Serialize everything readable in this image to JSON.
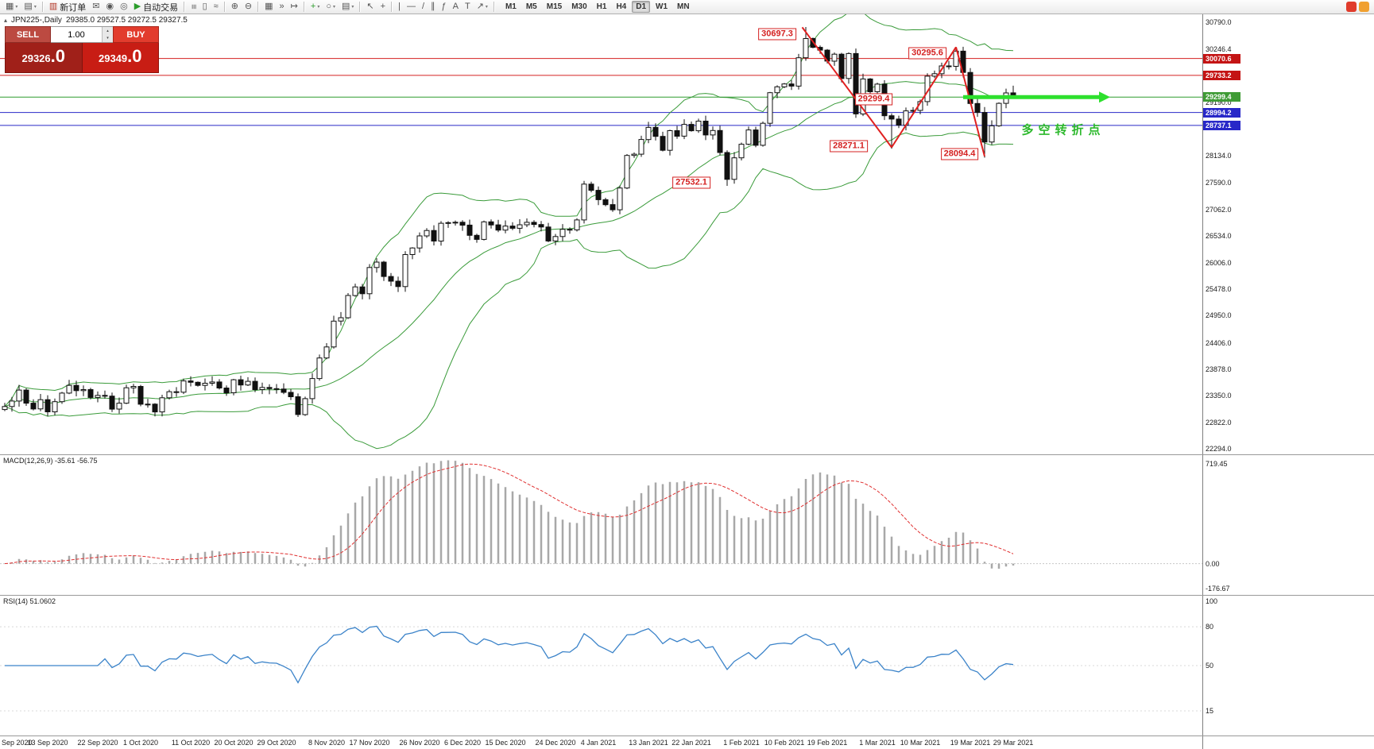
{
  "toolbar": {
    "items": [
      {
        "name": "new-chart-icon",
        "glyph": "▦",
        "dropdown": true
      },
      {
        "name": "chart-profiles-icon",
        "glyph": "▤",
        "dropdown": true
      },
      {
        "sep": true
      },
      {
        "name": "new-order-button",
        "glyph": "▥",
        "glyph_color": "#b03020",
        "label": "新订单"
      },
      {
        "name": "mailbox-icon",
        "glyph": "✉"
      },
      {
        "name": "alerts-icon",
        "glyph": "◉"
      },
      {
        "name": "community-icon",
        "glyph": "◎"
      },
      {
        "name": "autotrading-button",
        "glyph": "▶",
        "glyph_color": "#2a9c2a",
        "label": "自动交易"
      },
      {
        "sep": true
      },
      {
        "name": "bar-chart-icon",
        "glyph": "≡",
        "rotate": true
      },
      {
        "name": "candlestick-chart-icon",
        "glyph": "▯"
      },
      {
        "name": "line-chart-icon",
        "glyph": "≈"
      },
      {
        "sep": true
      },
      {
        "name": "zoom-in-icon",
        "glyph": "⊕"
      },
      {
        "name": "zoom-out-icon",
        "glyph": "⊖"
      },
      {
        "sep": true
      },
      {
        "name": "tile-windows-icon",
        "glyph": "▦"
      },
      {
        "name": "auto-scroll-icon",
        "glyph": "»"
      },
      {
        "name": "chart-shift-icon",
        "glyph": "↦"
      },
      {
        "sep": true
      },
      {
        "name": "indicators-icon",
        "glyph": "+",
        "glyph_color": "#2a9c2a",
        "dropdown": true
      },
      {
        "name": "periods-icon",
        "glyph": "○",
        "dropdown": true
      },
      {
        "name": "templates-icon",
        "glyph": "▤",
        "dropdown": true
      },
      {
        "sep": true
      },
      {
        "name": "cursor-icon",
        "glyph": "↖"
      },
      {
        "name": "crosshair-icon",
        "glyph": "+"
      },
      {
        "sep": true
      },
      {
        "name": "vertical-line-icon",
        "glyph": "|"
      },
      {
        "name": "horizontal-line-icon",
        "glyph": "—"
      },
      {
        "name": "trendline-icon",
        "glyph": "/"
      },
      {
        "name": "channel-icon",
        "glyph": "∥"
      },
      {
        "name": "fibonacci-icon",
        "glyph": "ƒ"
      },
      {
        "name": "text-icon",
        "glyph": "A"
      },
      {
        "name": "label-icon",
        "glyph": "T"
      },
      {
        "name": "arrows-icon",
        "glyph": "↗",
        "dropdown": true
      },
      {
        "sep": true
      }
    ],
    "timeframes": [
      "M1",
      "M5",
      "M15",
      "M30",
      "H1",
      "H4",
      "D1",
      "W1",
      "MN"
    ],
    "active_timeframe": "D1",
    "right_icons": [
      {
        "name": "mql5-community-icon",
        "color": "#e03c2c"
      },
      {
        "name": "news-icon",
        "color": "#f0a030"
      }
    ]
  },
  "symbol_bar": {
    "title": "JPN225-,Daily",
    "ohlc": "29385.0 29527.5 29272.5 29327.5"
  },
  "trade_panel": {
    "sell_label": "SELL",
    "buy_label": "BUY",
    "volume": "1.00",
    "sell_price_main": "29326",
    "sell_price_pips": ".0",
    "buy_price_main": "29349",
    "buy_price_pips": ".0"
  },
  "indicators": {
    "macd_label": "MACD(12,26,9) -35.61 -56.75",
    "rsi_label": "RSI(14) 51.0602"
  },
  "chart_data": {
    "type": "candlestick",
    "symbol": "JPN225-",
    "timeframe": "Daily",
    "closes": [
      23138,
      23247,
      23466,
      23205,
      23090,
      23274,
      23032,
      23235,
      23406,
      23559,
      23454,
      23475,
      23319,
      23360,
      23346,
      23087,
      23204,
      23511,
      23539,
      23185,
      23185,
      23030,
      23312,
      23433,
      23423,
      23647,
      23620,
      23559,
      23601,
      23627,
      23507,
      23411,
      23671,
      23567,
      23639,
      23474,
      23517,
      23494,
      23486,
      23419,
      23332,
      22977,
      23295,
      23695,
      24105,
      24325,
      24839,
      24906,
      25349,
      25521,
      25385,
      25907,
      26014,
      25728,
      25634,
      25527,
      26165,
      26296,
      26537,
      26644,
      26433,
      26787,
      26800,
      26809,
      26751,
      26547,
      26467,
      26817,
      26756,
      26652,
      26732,
      26687,
      26757,
      26806,
      26763,
      26714,
      26436,
      26524,
      26668,
      26657,
      26854,
      27568,
      27444,
      27258,
      27159,
      27056,
      27490,
      28139,
      28164,
      28456,
      28698,
      28519,
      28242,
      28633,
      28523,
      28757,
      28631,
      28822,
      28546,
      28635,
      28197,
      27663,
      28091,
      28362,
      28646,
      28341,
      28779,
      29388,
      29505,
      29562,
      29520,
      30084,
      30467,
      30292,
      30236,
      30017,
      30156,
      29671,
      30168,
      28966,
      29663,
      29408,
      29559,
      28930,
      28864,
      28743,
      29027,
      29036,
      29211,
      29717,
      29766,
      29921,
      29914,
      30216,
      29792,
      29174,
      28995,
      28406,
      28729,
      29176,
      29384,
      29327.5
    ],
    "key_bars": [
      {
        "i": 101,
        "low": 27532.1
      },
      {
        "i": 112,
        "high": 30697.3
      },
      {
        "i": 124,
        "low": 28271.1
      },
      {
        "i": 133,
        "high": 30295.6
      },
      {
        "i": 137,
        "low": 28094.4
      },
      {
        "i": 141,
        "open": 29385.0,
        "high": 29527.5,
        "low": 29272.5,
        "close": 29327.5
      }
    ],
    "bollinger": {
      "period": 20,
      "deviation": 2
    },
    "price_axis_labels": [
      "30790.0",
      "30246.4",
      "29190.0",
      "28134.0",
      "27590.0",
      "27062.0",
      "26534.0",
      "26006.0",
      "25478.0",
      "24950.0",
      "24406.0",
      "23878.0",
      "23350.0",
      "22822.0",
      "22294.0"
    ],
    "price_tags": [
      {
        "value": "30070.6",
        "color": "#c41414"
      },
      {
        "value": "29733.2",
        "color": "#c41414"
      },
      {
        "value": "29299.4",
        "color": "#3f9b35"
      },
      {
        "value": "28994.2",
        "color": "#2828c8"
      },
      {
        "value": "28737.1",
        "color": "#2828c8"
      }
    ],
    "levels": [
      {
        "price": 30070.6,
        "color": "#d42020"
      },
      {
        "price": 29733.2,
        "color": "#d42020"
      },
      {
        "price": 29299.4,
        "color": "#2e9b2e"
      },
      {
        "price": 28994.2,
        "color": "#2828c8"
      },
      {
        "price": 28737.1,
        "color": "#2828c8"
      }
    ],
    "annotations": [
      {
        "text": "30697.3",
        "bar": 108,
        "price": 30560,
        "style": "box"
      },
      {
        "text": "30295.6",
        "bar": 129,
        "price": 30180,
        "style": "box"
      },
      {
        "text": "29299.4",
        "bar": 121.5,
        "price": 29265,
        "style": "box"
      },
      {
        "text": "28271.1",
        "bar": 118,
        "price": 28330,
        "style": "box"
      },
      {
        "text": "28094.4",
        "bar": 133.5,
        "price": 28170,
        "style": "box"
      },
      {
        "text": "27532.1",
        "bar": 96,
        "price": 27600,
        "style": "box"
      },
      {
        "text": "多空转折点",
        "bar": 148,
        "price": 28650,
        "style": "note"
      }
    ],
    "trend_lines": [
      {
        "b1": 111.5,
        "p1": 30690,
        "b2": 124,
        "p2": 28300
      },
      {
        "b1": 124,
        "p1": 28300,
        "b2": 133,
        "p2": 30296
      },
      {
        "b1": 133,
        "p1": 30296,
        "b2": 137,
        "p2": 28120
      }
    ],
    "highlight_line": {
      "price": 29299.4,
      "from_bar": 134,
      "to_bar": 153,
      "color": "#2de02d"
    },
    "macd_axis_labels": [
      "719.45",
      "0.00",
      "-176.67"
    ],
    "rsi_axis_labels": [
      "100",
      "80",
      "50",
      "15"
    ],
    "rsi_levels": [
      80,
      50,
      15
    ],
    "time_axis": [
      {
        "label": "Sep 2020",
        "bar": 0
      },
      {
        "label": "13 Sep 2020",
        "bar": 6
      },
      {
        "label": "22 Sep 2020",
        "bar": 13
      },
      {
        "label": "1 Oct 2020",
        "bar": 19
      },
      {
        "label": "11 Oct 2020",
        "bar": 26
      },
      {
        "label": "20 Oct 2020",
        "bar": 32
      },
      {
        "label": "29 Oct 2020",
        "bar": 38
      },
      {
        "label": "8 Nov 2020",
        "bar": 45
      },
      {
        "label": "17 Nov 2020",
        "bar": 51
      },
      {
        "label": "26 Nov 2020",
        "bar": 58
      },
      {
        "label": "6 Dec 2020",
        "bar": 64
      },
      {
        "label": "15 Dec 2020",
        "bar": 70
      },
      {
        "label": "24 Dec 2020",
        "bar": 77
      },
      {
        "label": "4 Jan 2021",
        "bar": 83
      },
      {
        "label": "13 Jan 2021",
        "bar": 90
      },
      {
        "label": "22 Jan 2021",
        "bar": 96
      },
      {
        "label": "1 Feb 2021",
        "bar": 103
      },
      {
        "label": "10 Feb 2021",
        "bar": 109
      },
      {
        "label": "19 Feb 2021",
        "bar": 115
      },
      {
        "label": "1 Mar 2021",
        "bar": 122
      },
      {
        "label": "10 Mar 2021",
        "bar": 128
      },
      {
        "label": "19 Mar 2021",
        "bar": 135
      },
      {
        "label": "29 Mar 2021",
        "bar": 141
      }
    ]
  }
}
